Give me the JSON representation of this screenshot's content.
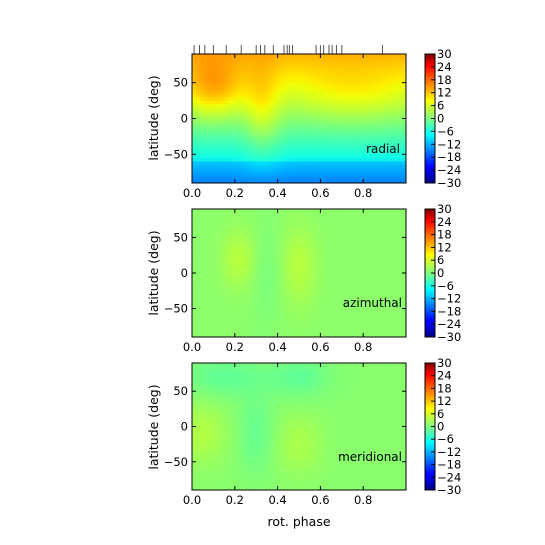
{
  "chart_data": [
    {
      "type": "heatmap",
      "name": "radial",
      "label": "radial",
      "ylabel": "latitude (deg)",
      "xlabel": "",
      "xlim": [
        0,
        1
      ],
      "ylim": [
        -90,
        90
      ],
      "xticks": [
        0.0,
        0.2,
        0.4,
        0.6,
        0.8
      ],
      "xtick_labels": [
        "0.0",
        "0.2",
        "0.4",
        "0.6",
        "0.8"
      ],
      "yticks": [
        50,
        0,
        -50
      ],
      "ytick_labels": [
        "50",
        "0",
        "−50"
      ],
      "colorbar": {
        "range": [
          -30,
          30
        ],
        "ticks": [
          30,
          24,
          18,
          12,
          6,
          0,
          -6,
          -12,
          -18,
          -24,
          -30
        ],
        "tick_labels": [
          "30",
          "24",
          "18",
          "12",
          "6",
          "0",
          "−6",
          "−12",
          "−18",
          "−24",
          "−30"
        ]
      },
      "phase_ticks": [
        0.01,
        0.035,
        0.06,
        0.1,
        0.16,
        0.23,
        0.3,
        0.32,
        0.34,
        0.38,
        0.43,
        0.445,
        0.455,
        0.47,
        0.58,
        0.6,
        0.615,
        0.64,
        0.655,
        0.675,
        0.7,
        0.89
      ]
    },
    {
      "type": "heatmap",
      "name": "azimuthal",
      "label": "azimuthal",
      "ylabel": "latitude (deg)",
      "xlabel": "",
      "xlim": [
        0,
        1
      ],
      "ylim": [
        -90,
        90
      ],
      "xticks": [
        0.0,
        0.2,
        0.4,
        0.6,
        0.8
      ],
      "xtick_labels": [
        "0.0",
        "0.2",
        "0.4",
        "0.6",
        "0.8"
      ],
      "yticks": [
        50,
        0,
        -50
      ],
      "ytick_labels": [
        "50",
        "0",
        "−50"
      ],
      "colorbar": {
        "range": [
          -30,
          30
        ],
        "ticks": [
          30,
          24,
          18,
          12,
          6,
          0,
          -6,
          -12,
          -18,
          -24,
          -30
        ],
        "tick_labels": [
          "30",
          "24",
          "18",
          "12",
          "6",
          "0",
          "−6",
          "−12",
          "−18",
          "−24",
          "−30"
        ]
      }
    },
    {
      "type": "heatmap",
      "name": "meridional",
      "label": "meridional",
      "ylabel": "latitude (deg)",
      "xlabel": "rot. phase",
      "xlim": [
        0,
        1
      ],
      "ylim": [
        -90,
        90
      ],
      "xticks": [
        0.0,
        0.2,
        0.4,
        0.6,
        0.8
      ],
      "xtick_labels": [
        "0.0",
        "0.2",
        "0.4",
        "0.6",
        "0.8"
      ],
      "yticks": [
        50,
        0,
        -50
      ],
      "ytick_labels": [
        "50",
        "0",
        "−50"
      ],
      "colorbar": {
        "range": [
          -30,
          30
        ],
        "ticks": [
          30,
          24,
          18,
          12,
          6,
          0,
          -6,
          -12,
          -18,
          -24,
          -30
        ],
        "tick_labels": [
          "30",
          "24",
          "18",
          "12",
          "6",
          "0",
          "−6",
          "−12",
          "−18",
          "−24",
          "−30"
        ]
      }
    }
  ],
  "colormap": "jet"
}
